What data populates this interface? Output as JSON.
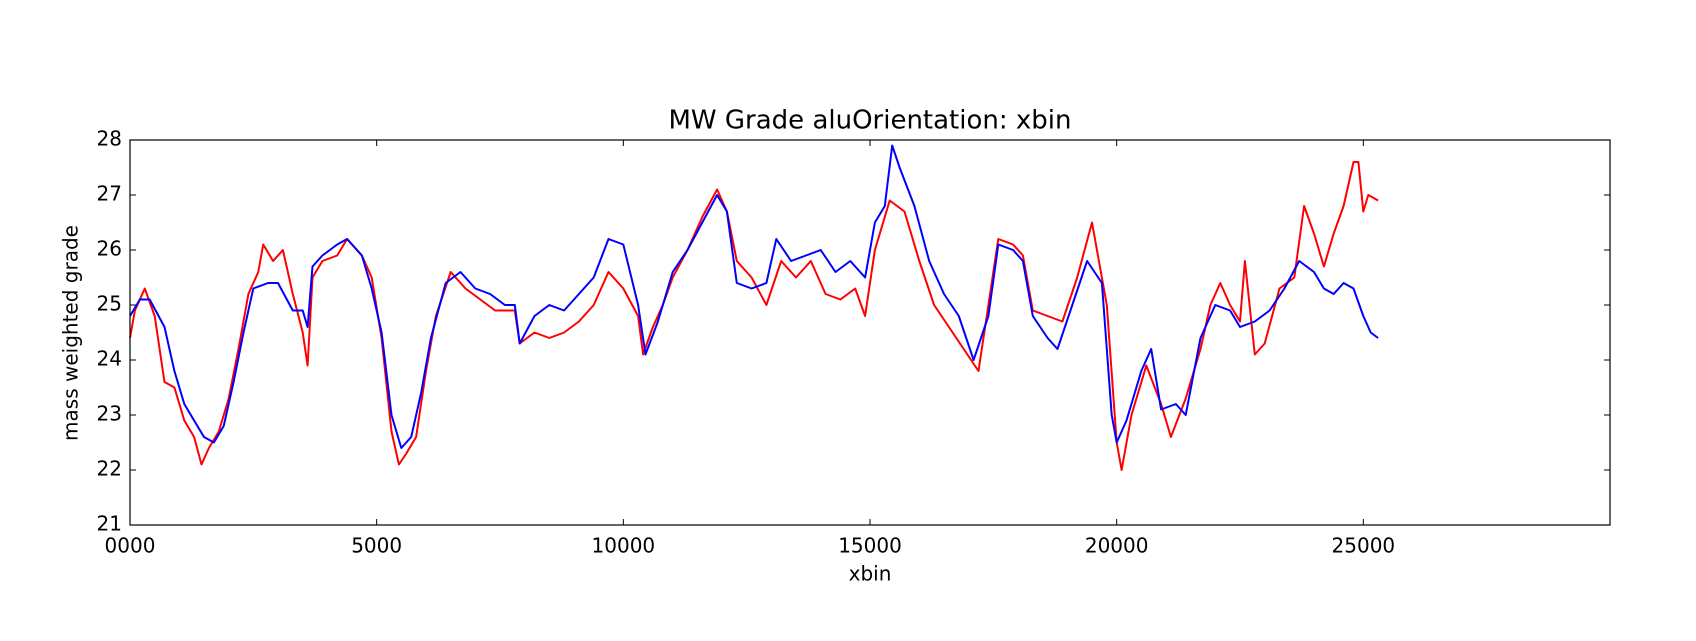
{
  "chart_data": {
    "type": "line",
    "title": "MW Grade aluOrientation: xbin",
    "x_label": "xbin",
    "y_label": "mass weighted grade",
    "xlim": [
      0,
      30000
    ],
    "xticks": [
      {
        "value": 0,
        "label": "0000"
      },
      5000,
      10000,
      15000,
      20000,
      25000
    ],
    "ylim": [
      21,
      28
    ],
    "yticks": [
      21,
      22,
      23,
      24,
      25,
      26,
      27,
      28
    ],
    "series": [
      {
        "color": "#ff0000",
        "x": [
          0,
          100,
          300,
          500,
          700,
          900,
          1100,
          1300,
          1450,
          1600,
          1800,
          2000,
          2200,
          2400,
          2600,
          2700,
          2900,
          3100,
          3300,
          3500,
          3600,
          3700,
          3900,
          4200,
          4400,
          4700,
          4900,
          5100,
          5300,
          5450,
          5600,
          5800,
          6000,
          6200,
          6500,
          6800,
          7100,
          7400,
          7800,
          7900,
          8200,
          8500,
          8800,
          9100,
          9400,
          9700,
          10000,
          10300,
          10400,
          10600,
          10800,
          11000,
          11300,
          11600,
          11900,
          12100,
          12300,
          12600,
          12900,
          13200,
          13500,
          13800,
          14100,
          14400,
          14700,
          14900,
          15100,
          15400,
          15700,
          16000,
          16300,
          16600,
          16900,
          17200,
          17400,
          17600,
          17900,
          18100,
          18300,
          18600,
          18900,
          19200,
          19500,
          19800,
          20000,
          20100,
          20300,
          20600,
          20900,
          21100,
          21400,
          21700,
          21900,
          22100,
          22300,
          22500,
          22600,
          22800,
          23000,
          23300,
          23600,
          23800,
          24000,
          24200,
          24400,
          24600,
          24800,
          24900,
          25000,
          25100,
          25300
        ],
        "values": [
          24.4,
          24.9,
          25.3,
          24.8,
          23.6,
          23.5,
          22.9,
          22.6,
          22.1,
          22.4,
          22.7,
          23.3,
          24.2,
          25.2,
          25.6,
          26.1,
          25.8,
          26.0,
          25.2,
          24.5,
          23.9,
          25.5,
          25.8,
          25.9,
          26.2,
          25.9,
          25.5,
          24.4,
          22.7,
          22.1,
          22.3,
          22.6,
          23.8,
          24.8,
          25.6,
          25.3,
          25.1,
          24.9,
          24.9,
          24.3,
          24.5,
          24.4,
          24.5,
          24.7,
          25.0,
          25.6,
          25.3,
          24.8,
          24.1,
          24.6,
          25.0,
          25.5,
          26.0,
          26.6,
          27.1,
          26.7,
          25.8,
          25.5,
          25.0,
          25.8,
          25.5,
          25.8,
          25.2,
          25.1,
          25.3,
          24.8,
          26.0,
          26.9,
          26.7,
          25.8,
          25.0,
          24.6,
          24.2,
          23.8,
          25.0,
          26.2,
          26.1,
          25.9,
          24.9,
          24.8,
          24.7,
          25.5,
          26.5,
          25.0,
          22.5,
          22.0,
          23.0,
          23.9,
          23.2,
          22.6,
          23.3,
          24.2,
          25.0,
          25.4,
          25.0,
          24.7,
          25.8,
          24.1,
          24.3,
          25.3,
          25.5,
          26.8,
          26.3,
          25.7,
          26.3,
          26.8,
          27.6,
          27.6,
          26.7,
          27.0,
          26.9
        ]
      },
      {
        "color": "#0000ff",
        "x": [
          0,
          200,
          400,
          700,
          900,
          1100,
          1300,
          1500,
          1700,
          1900,
          2100,
          2300,
          2500,
          2800,
          3000,
          3300,
          3500,
          3600,
          3700,
          3900,
          4200,
          4400,
          4700,
          4900,
          5100,
          5300,
          5500,
          5700,
          5900,
          6100,
          6400,
          6700,
          7000,
          7300,
          7600,
          7800,
          7900,
          8200,
          8500,
          8800,
          9100,
          9400,
          9700,
          10000,
          10300,
          10450,
          10700,
          11000,
          11300,
          11600,
          11900,
          12100,
          12300,
          12600,
          12900,
          13100,
          13400,
          13700,
          14000,
          14300,
          14600,
          14900,
          15100,
          15300,
          15450,
          15600,
          15900,
          16200,
          16500,
          16800,
          17100,
          17400,
          17600,
          17900,
          18100,
          18300,
          18600,
          18800,
          19100,
          19400,
          19700,
          19900,
          20000,
          20200,
          20500,
          20700,
          20900,
          21200,
          21400,
          21700,
          22000,
          22300,
          22500,
          22800,
          23100,
          23400,
          23700,
          24000,
          24200,
          24400,
          24600,
          24800,
          25000,
          25150,
          25300
        ],
        "values": [
          24.8,
          25.1,
          25.1,
          24.6,
          23.8,
          23.2,
          22.9,
          22.6,
          22.5,
          22.8,
          23.6,
          24.5,
          25.3,
          25.4,
          25.4,
          24.9,
          24.9,
          24.6,
          25.7,
          25.9,
          26.1,
          26.2,
          25.9,
          25.3,
          24.5,
          23.0,
          22.4,
          22.6,
          23.4,
          24.4,
          25.4,
          25.6,
          25.3,
          25.2,
          25.0,
          25.0,
          24.3,
          24.8,
          25.0,
          24.9,
          25.2,
          25.5,
          26.2,
          26.1,
          25.0,
          24.1,
          24.7,
          25.6,
          26.0,
          26.5,
          27.0,
          26.7,
          25.4,
          25.3,
          25.4,
          26.2,
          25.8,
          25.9,
          26.0,
          25.6,
          25.8,
          25.5,
          26.5,
          26.8,
          27.9,
          27.5,
          26.8,
          25.8,
          25.2,
          24.8,
          24.0,
          24.8,
          26.1,
          26.0,
          25.8,
          24.8,
          24.4,
          24.2,
          25.0,
          25.8,
          25.4,
          23.0,
          22.5,
          22.9,
          23.8,
          24.2,
          23.1,
          23.2,
          23.0,
          24.4,
          25.0,
          24.9,
          24.6,
          24.7,
          24.9,
          25.3,
          25.8,
          25.6,
          25.3,
          25.2,
          25.4,
          25.3,
          24.8,
          24.5,
          24.4
        ]
      }
    ]
  }
}
